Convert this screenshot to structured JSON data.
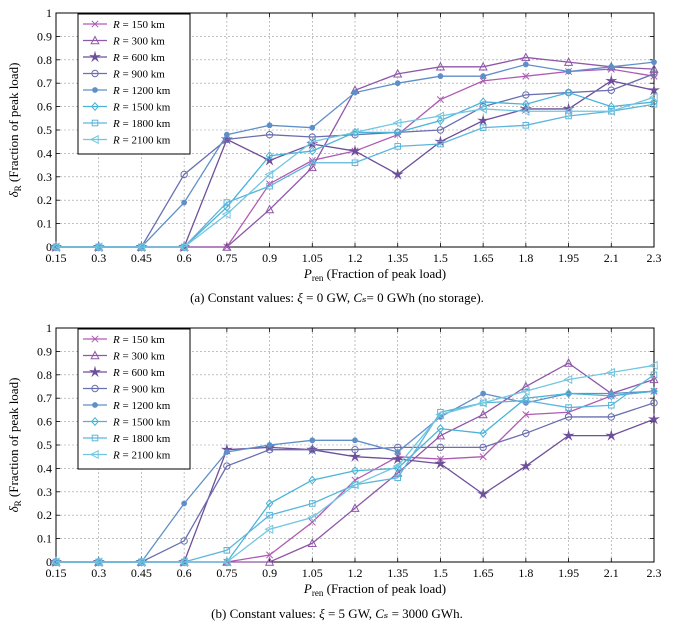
{
  "colors": {
    "R150": "#b05ab4",
    "R300": "#8f57a8",
    "R600": "#6e4f9a",
    "R900": "#6a6fb0",
    "R1200": "#5f8fc8",
    "R1500": "#4ab3d8",
    "R1800": "#5cb6dc",
    "R2100": "#72c6e0"
  },
  "chart_data": [
    {
      "type": "line",
      "caption": "(a) Constant values: ξ = 0 GW, Cₛ= 0 GWh (no storage).",
      "xlabel": "P_ren (Fraction of peak load)",
      "ylabel": "δ_R (Fraction of peak load)",
      "x": [
        0.15,
        0.3,
        0.45,
        0.6,
        0.75,
        0.9,
        1.05,
        1.2,
        1.35,
        1.5,
        1.65,
        1.8,
        1.95,
        2.1,
        2.3
      ],
      "x_ticks": [
        "0.15",
        "0.3",
        "0.45",
        "0.6",
        "0.75",
        "0.9",
        "1.05",
        "1.2",
        "1.35",
        "1.5",
        "1.65",
        "1.8",
        "1.95",
        "2.1",
        "2.3"
      ],
      "y_ticks": [
        "0",
        "0.1",
        "0.2",
        "0.3",
        "0.4",
        "0.5",
        "0.6",
        "0.7",
        "0.8",
        "0.9",
        "1"
      ],
      "xlim": [
        0.15,
        2.3
      ],
      "ylim": [
        0,
        1
      ],
      "grid": true,
      "legend_position": "top-left",
      "series": [
        {
          "name": "R = 150 km",
          "marker": "x",
          "values": [
            0,
            0,
            0,
            0,
            0,
            0.27,
            0.37,
            0.41,
            0.48,
            0.63,
            0.71,
            0.73,
            0.75,
            0.76,
            0.73
          ]
        },
        {
          "name": "R = 300 km",
          "marker": "triangle",
          "values": [
            0,
            0,
            0,
            0,
            0,
            0.16,
            0.34,
            0.67,
            0.74,
            0.77,
            0.77,
            0.81,
            0.79,
            0.77,
            0.76
          ]
        },
        {
          "name": "R = 600 km",
          "marker": "star",
          "values": [
            0,
            0,
            0,
            0,
            0.46,
            0.37,
            0.44,
            0.41,
            0.31,
            0.45,
            0.54,
            0.59,
            0.59,
            0.71,
            0.67
          ]
        },
        {
          "name": "R = 900 km",
          "marker": "circle",
          "values": [
            0,
            0,
            0,
            0.31,
            0.46,
            0.48,
            0.47,
            0.48,
            0.49,
            0.5,
            0.6,
            0.65,
            0.66,
            0.67,
            0.74
          ]
        },
        {
          "name": "R = 1200 km",
          "marker": "dot",
          "values": [
            0,
            0,
            0,
            0.19,
            0.48,
            0.52,
            0.51,
            0.66,
            0.7,
            0.73,
            0.73,
            0.78,
            0.75,
            0.77,
            0.79
          ]
        },
        {
          "name": "R = 1500 km",
          "marker": "diamond",
          "values": [
            0,
            0,
            0,
            0,
            0.17,
            0.39,
            0.41,
            0.49,
            0.49,
            0.54,
            0.62,
            0.61,
            0.66,
            0.6,
            0.62
          ]
        },
        {
          "name": "R = 1800 km",
          "marker": "square",
          "values": [
            0,
            0,
            0,
            0,
            0.19,
            0.26,
            0.36,
            0.36,
            0.43,
            0.44,
            0.51,
            0.52,
            0.56,
            0.58,
            0.61
          ]
        },
        {
          "name": "R = 2100 km",
          "marker": "triangle-left",
          "values": [
            0,
            0,
            0,
            0,
            0.14,
            0.31,
            0.45,
            0.49,
            0.53,
            0.56,
            0.59,
            0.58,
            0.58,
            0.58,
            0.64
          ]
        }
      ]
    },
    {
      "type": "line",
      "caption": "(b) Constant values: ξ = 5 GW, Cₛ = 3000 GWh.",
      "xlabel": "P_ren (Fraction of peak load)",
      "ylabel": "δ_R (Fraction of peak load)",
      "x": [
        0.15,
        0.3,
        0.45,
        0.6,
        0.75,
        0.9,
        1.05,
        1.2,
        1.35,
        1.5,
        1.65,
        1.8,
        1.95,
        2.1,
        2.3
      ],
      "x_ticks": [
        "0.15",
        "0.3",
        "0.45",
        "0.6",
        "0.75",
        "0.9",
        "1.05",
        "1.2",
        "1.35",
        "1.5",
        "1.65",
        "1.8",
        "1.95",
        "2.1",
        "2.3"
      ],
      "y_ticks": [
        "0",
        "0.1",
        "0.2",
        "0.3",
        "0.4",
        "0.5",
        "0.6",
        "0.7",
        "0.8",
        "0.9",
        "1"
      ],
      "xlim": [
        0.15,
        2.3
      ],
      "ylim": [
        0,
        1
      ],
      "grid": true,
      "legend_position": "top-left",
      "series": [
        {
          "name": "R = 150 km",
          "marker": "x",
          "values": [
            0,
            0,
            0,
            0,
            0,
            0.03,
            0.17,
            0.35,
            0.45,
            0.44,
            0.45,
            0.63,
            0.64,
            0.71,
            0.73
          ]
        },
        {
          "name": "R = 300 km",
          "marker": "triangle",
          "values": [
            0,
            0,
            0,
            0,
            0,
            0,
            0.08,
            0.23,
            0.38,
            0.54,
            0.63,
            0.75,
            0.85,
            0.72,
            0.78
          ]
        },
        {
          "name": "R = 600 km",
          "marker": "star",
          "values": [
            0,
            0,
            0,
            0,
            0.48,
            0.49,
            0.48,
            0.45,
            0.44,
            0.42,
            0.29,
            0.41,
            0.54,
            0.54,
            0.61
          ]
        },
        {
          "name": "R = 900 km",
          "marker": "circle",
          "values": [
            0,
            0,
            0,
            0.09,
            0.41,
            0.48,
            0.48,
            0.48,
            0.49,
            0.49,
            0.49,
            0.55,
            0.62,
            0.62,
            0.68
          ]
        },
        {
          "name": "R = 1200 km",
          "marker": "dot",
          "values": [
            0,
            0,
            0,
            0.25,
            0.47,
            0.5,
            0.52,
            0.52,
            0.47,
            0.62,
            0.72,
            0.68,
            0.72,
            0.72,
            0.73
          ]
        },
        {
          "name": "R = 1500 km",
          "marker": "diamond",
          "values": [
            0,
            0,
            0,
            0,
            0,
            0.25,
            0.35,
            0.39,
            0.4,
            0.57,
            0.55,
            0.7,
            0.72,
            0.71,
            0.73
          ]
        },
        {
          "name": "R = 1800 km",
          "marker": "square",
          "values": [
            0,
            0,
            0,
            0,
            0.05,
            0.2,
            0.25,
            0.33,
            0.36,
            0.64,
            0.68,
            0.69,
            0.66,
            0.67,
            0.8
          ]
        },
        {
          "name": "R = 2100 km",
          "marker": "triangle-left",
          "values": [
            0,
            0,
            0,
            0,
            0,
            0.14,
            0.19,
            0.33,
            0.41,
            0.63,
            0.68,
            0.73,
            0.78,
            0.81,
            0.84
          ]
        }
      ]
    }
  ]
}
